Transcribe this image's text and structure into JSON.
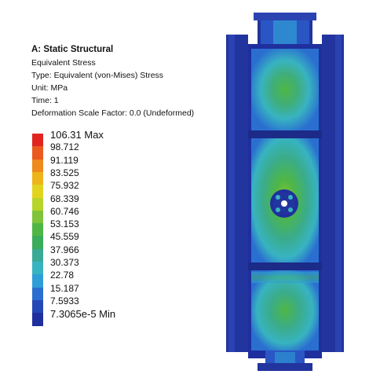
{
  "info": {
    "title": "A: Static Structural",
    "result": "Equivalent Stress",
    "type_line": "Type: Equivalent (von-Mises) Stress",
    "unit_line": "Unit: MPa",
    "time_line": "Time: 1",
    "deformation_line": "Deformation Scale Factor: 0.0 (Undeformed)"
  },
  "legend": {
    "entries": [
      {
        "label": "106.31 Max",
        "color": "#e0261f"
      },
      {
        "label": "98.712",
        "color": "#ea5a1e"
      },
      {
        "label": "91.119",
        "color": "#ef8a1d"
      },
      {
        "label": "83.525",
        "color": "#eeb41c"
      },
      {
        "label": "75.932",
        "color": "#e2d41e"
      },
      {
        "label": "68.339",
        "color": "#b7d42a"
      },
      {
        "label": "60.746",
        "color": "#7fc43a"
      },
      {
        "label": "53.153",
        "color": "#4fb646"
      },
      {
        "label": "45.559",
        "color": "#3aac5a"
      },
      {
        "label": "37.966",
        "color": "#3aa995"
      },
      {
        "label": "30.373",
        "color": "#38b3c1"
      },
      {
        "label": "22.78",
        "color": "#2f9ed6"
      },
      {
        "label": "15.187",
        "color": "#2a6fd0"
      },
      {
        "label": "7.5933",
        "color": "#2448b6"
      },
      {
        "label": "7.3065e-5 Min",
        "color": "#1f2f9e"
      }
    ]
  },
  "colors": {
    "min_blue": "#22349e",
    "deep_blue": "#1c2a88",
    "cyan": "#38b3c1",
    "green": "#3fae63"
  }
}
